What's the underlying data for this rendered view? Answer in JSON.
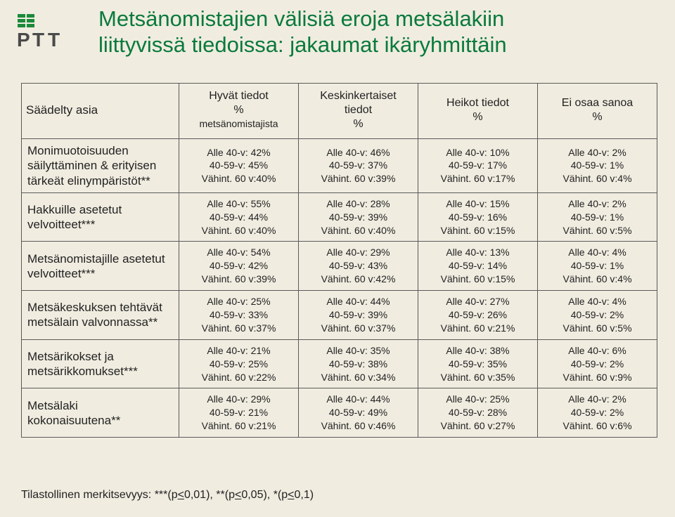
{
  "slide": {
    "title_line1": "Metsänomistajien välisiä eroja metsälakiin",
    "title_line2": "liittyvissä tiedoissa: jakaumat ikäryhmittäin",
    "footnote_prefix": "Tilastollinen merkitsevyys: ",
    "footnote_s3": "***(p",
    "footnote_le": "<",
    "footnote_v1": "0,01), ",
    "footnote_s2": "**(p",
    "footnote_v2": "0,05), ",
    "footnote_s1": "*(p",
    "footnote_v3": "0,1)"
  },
  "table": {
    "head": {
      "c0": "Säädelty asia",
      "c1a": "Hyvät tiedot",
      "c1b": "%",
      "c1c": "metsänomistajista",
      "c2a": "Keskinkertaiset",
      "c2b": "tiedot",
      "c2c": "%",
      "c3a": "Heikot tiedot",
      "c3b": "%",
      "c4a": "Ei osaa sanoa",
      "c4b": "%"
    },
    "rows": [
      {
        "label": "Monimuotoisuuden säilyttäminen & erityisen tärkeät elinympäristöt**",
        "c1": [
          "Alle 40-v: 42%",
          "40-59-v: 45%",
          "Vähint. 60 v:40%"
        ],
        "c2": [
          "Alle 40-v: 46%",
          "40-59-v: 37%",
          "Vähint. 60 v:39%"
        ],
        "c3": [
          "Alle 40-v: 10%",
          "40-59-v: 17%",
          "Vähint. 60 v:17%"
        ],
        "c4": [
          "Alle 40-v: 2%",
          "40-59-v: 1%",
          "Vähint. 60 v:4%"
        ]
      },
      {
        "label": "Hakkuille asetetut velvoitteet***",
        "c1": [
          "Alle 40-v: 55%",
          "40-59-v: 44%",
          "Vähint. 60 v:40%"
        ],
        "c2": [
          "Alle 40-v: 28%",
          "40-59-v: 39%",
          "Vähint. 60 v:40%"
        ],
        "c3": [
          "Alle 40-v: 15%",
          "40-59-v: 16%",
          "Vähint. 60 v:15%"
        ],
        "c4": [
          "Alle 40-v: 2%",
          "40-59-v: 1%",
          "Vähint. 60 v:5%"
        ]
      },
      {
        "label": "Metsänomistajille asetetut velvoitteet***",
        "c1": [
          "Alle 40-v: 54%",
          "40-59-v: 42%",
          "Vähint. 60 v:39%"
        ],
        "c2": [
          "Alle 40-v: 29%",
          "40-59-v: 43%",
          "Vähint. 60 v:42%"
        ],
        "c3": [
          "Alle 40-v: 13%",
          "40-59-v: 14%",
          "Vähint. 60 v:15%"
        ],
        "c4": [
          "Alle 40-v: 4%",
          "40-59-v: 1%",
          "Vähint. 60 v:4%"
        ]
      },
      {
        "label": "Metsäkeskuksen tehtävät metsälain valvonnassa**",
        "c1": [
          "Alle 40-v: 25%",
          "40-59-v: 33%",
          "Vähint. 60 v:37%"
        ],
        "c2": [
          "Alle 40-v: 44%",
          "40-59-v: 39%",
          "Vähint. 60 v:37%"
        ],
        "c3": [
          "Alle 40-v: 27%",
          "40-59-v: 26%",
          "Vähint. 60 v:21%"
        ],
        "c4": [
          "Alle 40-v: 4%",
          "40-59-v: 2%",
          "Vähint. 60 v:5%"
        ]
      },
      {
        "label": "Metsärikokset ja metsärikkomukset***",
        "c1": [
          "Alle 40-v: 21%",
          "40-59-v: 25%",
          "Vähint. 60 v:22%"
        ],
        "c2": [
          "Alle 40-v: 35%",
          "40-59-v: 38%",
          "Vähint. 60 v:34%"
        ],
        "c3": [
          "Alle 40-v: 38%",
          "40-59-v: 35%",
          "Vähint. 60 v:35%"
        ],
        "c4": [
          "Alle 40-v: 6%",
          "40-59-v: 2%",
          "Vähint. 60 v:9%"
        ]
      },
      {
        "label": "Metsälaki kokonaisuutena**",
        "c1": [
          "Alle 40-v: 29%",
          "40-59-v: 21%",
          "Vähint. 60 v:21%"
        ],
        "c2": [
          "Alle 40-v: 44%",
          "40-59-v: 49%",
          "Vähint. 60 v:46%"
        ],
        "c3": [
          "Alle 40-v: 25%",
          "40-59-v: 28%",
          "Vähint. 60 v:27%"
        ],
        "c4": [
          "Alle 40-v: 2%",
          "40-59-v: 2%",
          "Vähint. 60 v:6%"
        ]
      }
    ]
  },
  "colors": {
    "title": "#0a7a3c",
    "border": "#5a5a5a",
    "bg": "#f0ece0",
    "text": "#222222",
    "logo_green": "#1a8a3a",
    "logo_dark": "#4a4a4a"
  }
}
